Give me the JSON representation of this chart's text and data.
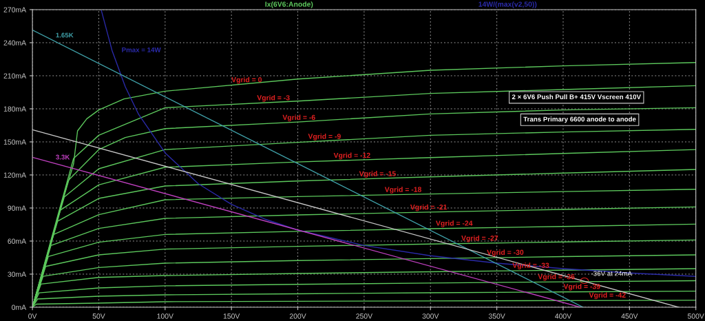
{
  "chart_data": {
    "type": "line",
    "title": "Ix(6V6:Anode)",
    "subtitle": "14W/(max(v2,50))",
    "xlim": [
      0,
      500
    ],
    "ylim": [
      0,
      270
    ],
    "xticks": [
      {
        "value": 0,
        "label": "0V"
      },
      {
        "value": 50,
        "label": "50V"
      },
      {
        "value": 100,
        "label": "100V"
      },
      {
        "value": 150,
        "label": "150V"
      },
      {
        "value": 200,
        "label": "200V"
      },
      {
        "value": 250,
        "label": "250V"
      },
      {
        "value": 300,
        "label": "300V"
      },
      {
        "value": 350,
        "label": "350V"
      },
      {
        "value": 400,
        "label": "400V"
      },
      {
        "value": 450,
        "label": "450V"
      },
      {
        "value": 500,
        "label": "500V"
      }
    ],
    "yticks": [
      {
        "value": 0,
        "label": "0mA"
      },
      {
        "value": 30,
        "label": "30mA"
      },
      {
        "value": 60,
        "label": "60mA"
      },
      {
        "value": 90,
        "label": "90mA"
      },
      {
        "value": 120,
        "label": "120mA"
      },
      {
        "value": 150,
        "label": "150mA"
      },
      {
        "value": 180,
        "label": "180mA"
      },
      {
        "value": 210,
        "label": "210mA"
      },
      {
        "value": 240,
        "label": "240mA"
      },
      {
        "value": 270,
        "label": "270mA"
      }
    ],
    "grid": true,
    "marker": "none",
    "line_style": "solid",
    "series": [
      {
        "name": "Vgrid = 0",
        "color": "#5cc85c",
        "x": [
          0,
          20,
          31,
          34,
          41,
          50,
          69,
          100,
          200,
          300,
          400,
          500
        ],
        "values": [
          0,
          85,
          130,
          160,
          171,
          179,
          189,
          196,
          207,
          215,
          219,
          222
        ]
      },
      {
        "name": "Vgrid = -3",
        "color": "#5cc85c",
        "x": [
          0,
          31,
          50,
          70,
          100,
          200,
          300,
          400,
          500
        ],
        "values": [
          0,
          135,
          156,
          166,
          181,
          187,
          194,
          197.5,
          201
        ]
      },
      {
        "name": "Vgrid = -6",
        "color": "#5cc85c",
        "x": [
          0,
          27,
          50,
          70,
          100,
          200,
          300,
          400,
          500
        ],
        "values": [
          0,
          115,
          143,
          154,
          162,
          168,
          175.4,
          179,
          181
        ]
      },
      {
        "name": "Vgrid = -9",
        "color": "#5cc85c",
        "x": [
          0,
          24,
          50,
          100,
          200,
          300,
          400,
          500
        ],
        "values": [
          0,
          100,
          125.6,
          143,
          149.6,
          156,
          159,
          161.4
        ]
      },
      {
        "name": "Vgrid = -12",
        "color": "#5cc85c",
        "x": [
          0,
          21,
          50,
          100,
          200,
          300,
          400,
          500
        ],
        "values": [
          0,
          88,
          111,
          127,
          131.8,
          135.8,
          139.5,
          143
        ]
      },
      {
        "name": "Vgrid = -15",
        "color": "#5cc85c",
        "x": [
          0,
          19,
          50,
          100,
          200,
          300,
          400,
          500
        ],
        "values": [
          0,
          78,
          98.7,
          110,
          114.5,
          118.3,
          121.7,
          125
        ]
      },
      {
        "name": "Vgrid = -18",
        "color": "#5cc85c",
        "x": [
          0,
          16,
          50,
          100,
          200,
          300,
          400,
          500
        ],
        "values": [
          0,
          66,
          84,
          97.5,
          100.4,
          102.7,
          104.9,
          107
        ]
      },
      {
        "name": "Vgrid = -21",
        "color": "#5cc85c",
        "x": [
          0,
          14,
          50,
          100,
          200,
          300,
          400,
          500
        ],
        "values": [
          0,
          56,
          71.5,
          80.6,
          83.7,
          86.3,
          88.7,
          91
        ]
      },
      {
        "name": "Vgrid = -24",
        "color": "#5cc85c",
        "x": [
          0,
          12,
          50,
          100,
          200,
          300,
          400,
          500
        ],
        "values": [
          0,
          46,
          59,
          66,
          68.8,
          71.2,
          73.3,
          75.4
        ]
      },
      {
        "name": "Vgrid = -27",
        "color": "#5cc85c",
        "x": [
          0,
          10,
          50,
          100,
          200,
          300,
          400,
          500
        ],
        "values": [
          0,
          37,
          47.5,
          52.7,
          55.2,
          57.3,
          59.2,
          61
        ]
      },
      {
        "name": "Vgrid = -30",
        "color": "#5cc85c",
        "x": [
          0,
          8,
          50,
          100,
          200,
          300,
          400,
          500
        ],
        "values": [
          0,
          28,
          36,
          40,
          42.3,
          44.1,
          45.9,
          47.5
        ]
      },
      {
        "name": "Vgrid = -33",
        "color": "#5cc85c",
        "x": [
          0,
          6.5,
          50,
          100,
          200,
          300,
          400,
          500
        ],
        "values": [
          0,
          21,
          27,
          28.7,
          30.6,
          32.2,
          33.6,
          35
        ]
      },
      {
        "name": "Vgrid = -36",
        "color": "#5cc85c",
        "x": [
          0,
          5,
          50,
          100,
          200,
          300,
          400,
          500
        ],
        "values": [
          0,
          13,
          17.5,
          19.4,
          20.8,
          21.9,
          23,
          24
        ]
      },
      {
        "name": "Vgrid = -39",
        "color": "#5cc85c",
        "x": [
          0,
          4,
          50,
          100,
          200,
          300,
          400,
          500
        ],
        "values": [
          0,
          7.5,
          10,
          11.2,
          12.2,
          13.1,
          13.9,
          14.6
        ]
      },
      {
        "name": "Vgrid = -42",
        "color": "#5cc85c",
        "x": [
          0,
          3,
          50,
          100,
          200,
          300,
          400,
          500
        ],
        "values": [
          0,
          2.8,
          3.7,
          5,
          5.4,
          5.7,
          6,
          6.3
        ]
      },
      {
        "name": "Pmax = 14W",
        "color": "#2a2aa8",
        "x": [
          52,
          60,
          70,
          80,
          100,
          125,
          150,
          175,
          200,
          250,
          300,
          350,
          400,
          450,
          500
        ],
        "values": [
          269,
          233,
          200,
          175,
          140,
          112,
          93.3,
          80,
          70,
          56,
          46.7,
          40,
          35,
          31.1,
          28
        ]
      },
      {
        "name": "1.65K",
        "color": "#3fa0a8",
        "x": [
          0,
          415
        ],
        "values": [
          251.5,
          0
        ]
      },
      {
        "name": "3.3K",
        "color": "#c040c0",
        "x": [
          0,
          413
        ],
        "values": [
          136,
          0
        ]
      },
      {
        "color": "#c8c8c8",
        "x": [
          0,
          487
        ],
        "values": [
          161,
          0
        ]
      }
    ],
    "annotations": [
      "2 × 6V6 Push Pull B+ 415V Vscreen 410V",
      "Trans Primary 6600 anode to anode",
      {
        "text": "-36V at 24mA",
        "x": 416,
        "y": 24
      }
    ]
  }
}
